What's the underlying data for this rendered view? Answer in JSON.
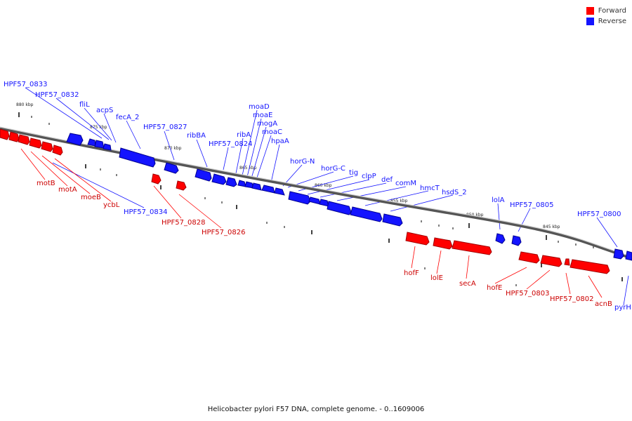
{
  "caption": "Helicobacter pylori F57 DNA, complete genome. - 0..1609006",
  "legend": [
    {
      "label": "Forward",
      "color": "#ff0000"
    },
    {
      "label": "Reverse",
      "color": "#1414ff"
    }
  ],
  "colors": {
    "forward": "#ff0000",
    "forward_dark": "#a10000",
    "reverse": "#1414ff",
    "reverse_dark": "#000090",
    "axis": "#666666"
  },
  "scale_labels": [
    "880 kbp",
    "875 kbp",
    "870 kbp",
    "865 kbp",
    "860 kbp",
    "855 kbp",
    "850 kbp",
    "845 kbp"
  ],
  "genes": {
    "reverse": [
      "HPF57_0833",
      "HPF57_0832",
      "fliL",
      "acpS",
      "fecA_2",
      "HPF57_0827",
      "ribBA",
      "HPF57_0824",
      "ribA",
      "moaD",
      "moaE",
      "mogA",
      "moaC",
      "hpaA",
      "horG-N",
      "horG-C",
      "tig",
      "clpP",
      "def",
      "comM",
      "hmcT",
      "hsdS_2",
      "lolA",
      "HPF57_0805",
      "HPF57_0800",
      "HPF57_0834",
      "pyrH"
    ],
    "forward": [
      "motB",
      "motA",
      "moeB",
      "ycbL",
      "HPF57_0828",
      "HPF57_0826",
      "hofF",
      "lolE",
      "secA",
      "hofE",
      "HPF57_0803",
      "HPF57_0802",
      "acnB"
    ]
  }
}
